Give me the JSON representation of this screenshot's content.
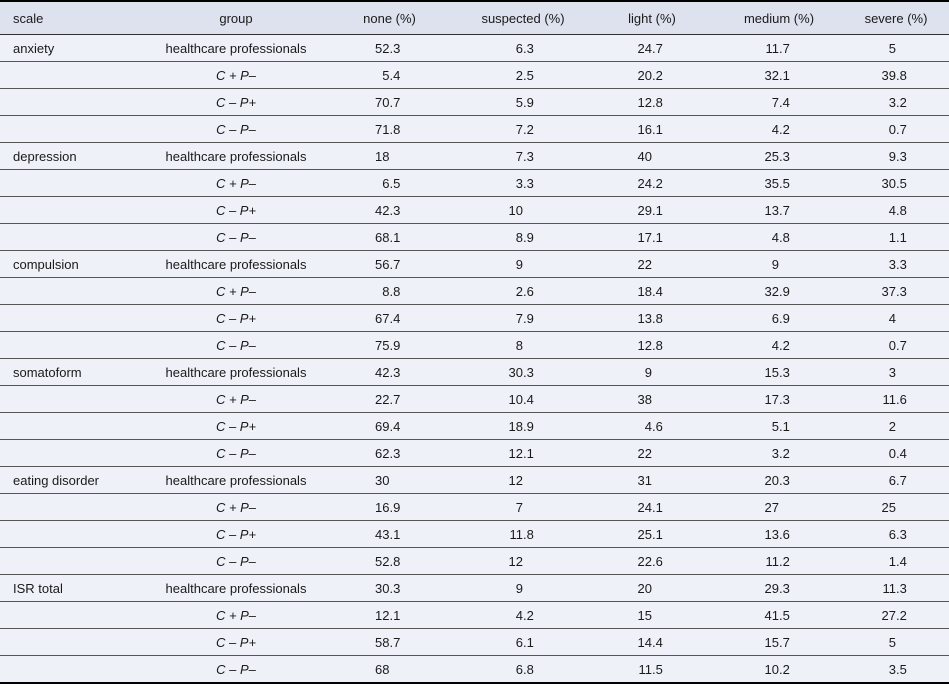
{
  "table": {
    "colors": {
      "header_bg": "#dde2ee",
      "row_bg": "#eef1f8",
      "rule": "#565656",
      "heavy_rule": "#303030",
      "frame": "#000000"
    },
    "columns": [
      {
        "label": "scale"
      },
      {
        "label": "group"
      },
      {
        "label": "none (%)"
      },
      {
        "label": "suspected (%)"
      },
      {
        "label": "light (%)"
      },
      {
        "label": "medium (%)"
      },
      {
        "label": "severe (%)"
      }
    ],
    "groups": [
      {
        "scale": "anxiety",
        "rows": [
          {
            "group": "healthcare professionals",
            "italic": false,
            "values": [
              "52.3",
              "6.3",
              "24.7",
              "11.7",
              "5"
            ]
          },
          {
            "group": "C + P–",
            "italic": true,
            "values": [
              "5.4",
              "2.5",
              "20.2",
              "32.1",
              "39.8"
            ]
          },
          {
            "group": "C – P+",
            "italic": true,
            "values": [
              "70.7",
              "5.9",
              "12.8",
              "7.4",
              "3.2"
            ]
          },
          {
            "group": "C – P–",
            "italic": true,
            "values": [
              "71.8",
              "7.2",
              "16.1",
              "4.2",
              "0.7"
            ]
          }
        ]
      },
      {
        "scale": "depression",
        "rows": [
          {
            "group": "healthcare professionals",
            "italic": false,
            "values": [
              "18",
              "7.3",
              "40",
              "25.3",
              "9.3"
            ]
          },
          {
            "group": "C + P–",
            "italic": true,
            "values": [
              "6.5",
              "3.3",
              "24.2",
              "35.5",
              "30.5"
            ]
          },
          {
            "group": "C – P+",
            "italic": true,
            "values": [
              "42.3",
              "10",
              "29.1",
              "13.7",
              "4.8"
            ]
          },
          {
            "group": "C – P–",
            "italic": true,
            "values": [
              "68.1",
              "8.9",
              "17.1",
              "4.8",
              "1.1"
            ]
          }
        ]
      },
      {
        "scale": "compulsion",
        "rows": [
          {
            "group": "healthcare professionals",
            "italic": false,
            "values": [
              "56.7",
              "9",
              "22",
              "9",
              "3.3"
            ]
          },
          {
            "group": "C + P–",
            "italic": true,
            "values": [
              "8.8",
              "2.6",
              "18.4",
              "32.9",
              "37.3"
            ]
          },
          {
            "group": "C – P+",
            "italic": true,
            "values": [
              "67.4",
              "7.9",
              "13.8",
              "6.9",
              "4"
            ]
          },
          {
            "group": "C – P–",
            "italic": true,
            "values": [
              "75.9",
              "8",
              "12.8",
              "4.2",
              "0.7"
            ]
          }
        ]
      },
      {
        "scale": "somatoform",
        "rows": [
          {
            "group": "healthcare professionals",
            "italic": false,
            "values": [
              "42.3",
              "30.3",
              "9",
              "15.3",
              "3"
            ]
          },
          {
            "group": "C + P–",
            "italic": true,
            "values": [
              "22.7",
              "10.4",
              "38",
              "17.3",
              "11.6"
            ]
          },
          {
            "group": "C – P+",
            "italic": true,
            "values": [
              "69.4",
              "18.9",
              "4.6",
              "5.1",
              "2"
            ]
          },
          {
            "group": "C – P–",
            "italic": true,
            "values": [
              "62.3",
              "12.1",
              "22",
              "3.2",
              "0.4"
            ]
          }
        ]
      },
      {
        "scale": "eating disorder",
        "rows": [
          {
            "group": "healthcare professionals",
            "italic": false,
            "values": [
              "30",
              "12",
              "31",
              "20.3",
              "6.7"
            ]
          },
          {
            "group": "C + P–",
            "italic": true,
            "values": [
              "16.9",
              "7",
              "24.1",
              "27",
              "25"
            ]
          },
          {
            "group": "C – P+",
            "italic": true,
            "values": [
              "43.1",
              "11.8",
              "25.1",
              "13.6",
              "6.3"
            ]
          },
          {
            "group": "C – P–",
            "italic": true,
            "values": [
              "52.8",
              "12",
              "22.6",
              "11.2",
              "1.4"
            ]
          }
        ]
      },
      {
        "scale": "ISR total",
        "rows": [
          {
            "group": "healthcare professionals",
            "italic": false,
            "values": [
              "30.3",
              "9",
              "20",
              "29.3",
              "11.3"
            ]
          },
          {
            "group": "C + P–",
            "italic": true,
            "values": [
              "12.1",
              "4.2",
              "15",
              "41.5",
              "27.2"
            ]
          },
          {
            "group": "C – P+",
            "italic": true,
            "values": [
              "58.7",
              "6.1",
              "14.4",
              "15.7",
              "5"
            ]
          },
          {
            "group": "C – P–",
            "italic": true,
            "values": [
              "68",
              "6.8",
              "11.5",
              "10.2",
              "3.5"
            ]
          }
        ]
      }
    ]
  }
}
